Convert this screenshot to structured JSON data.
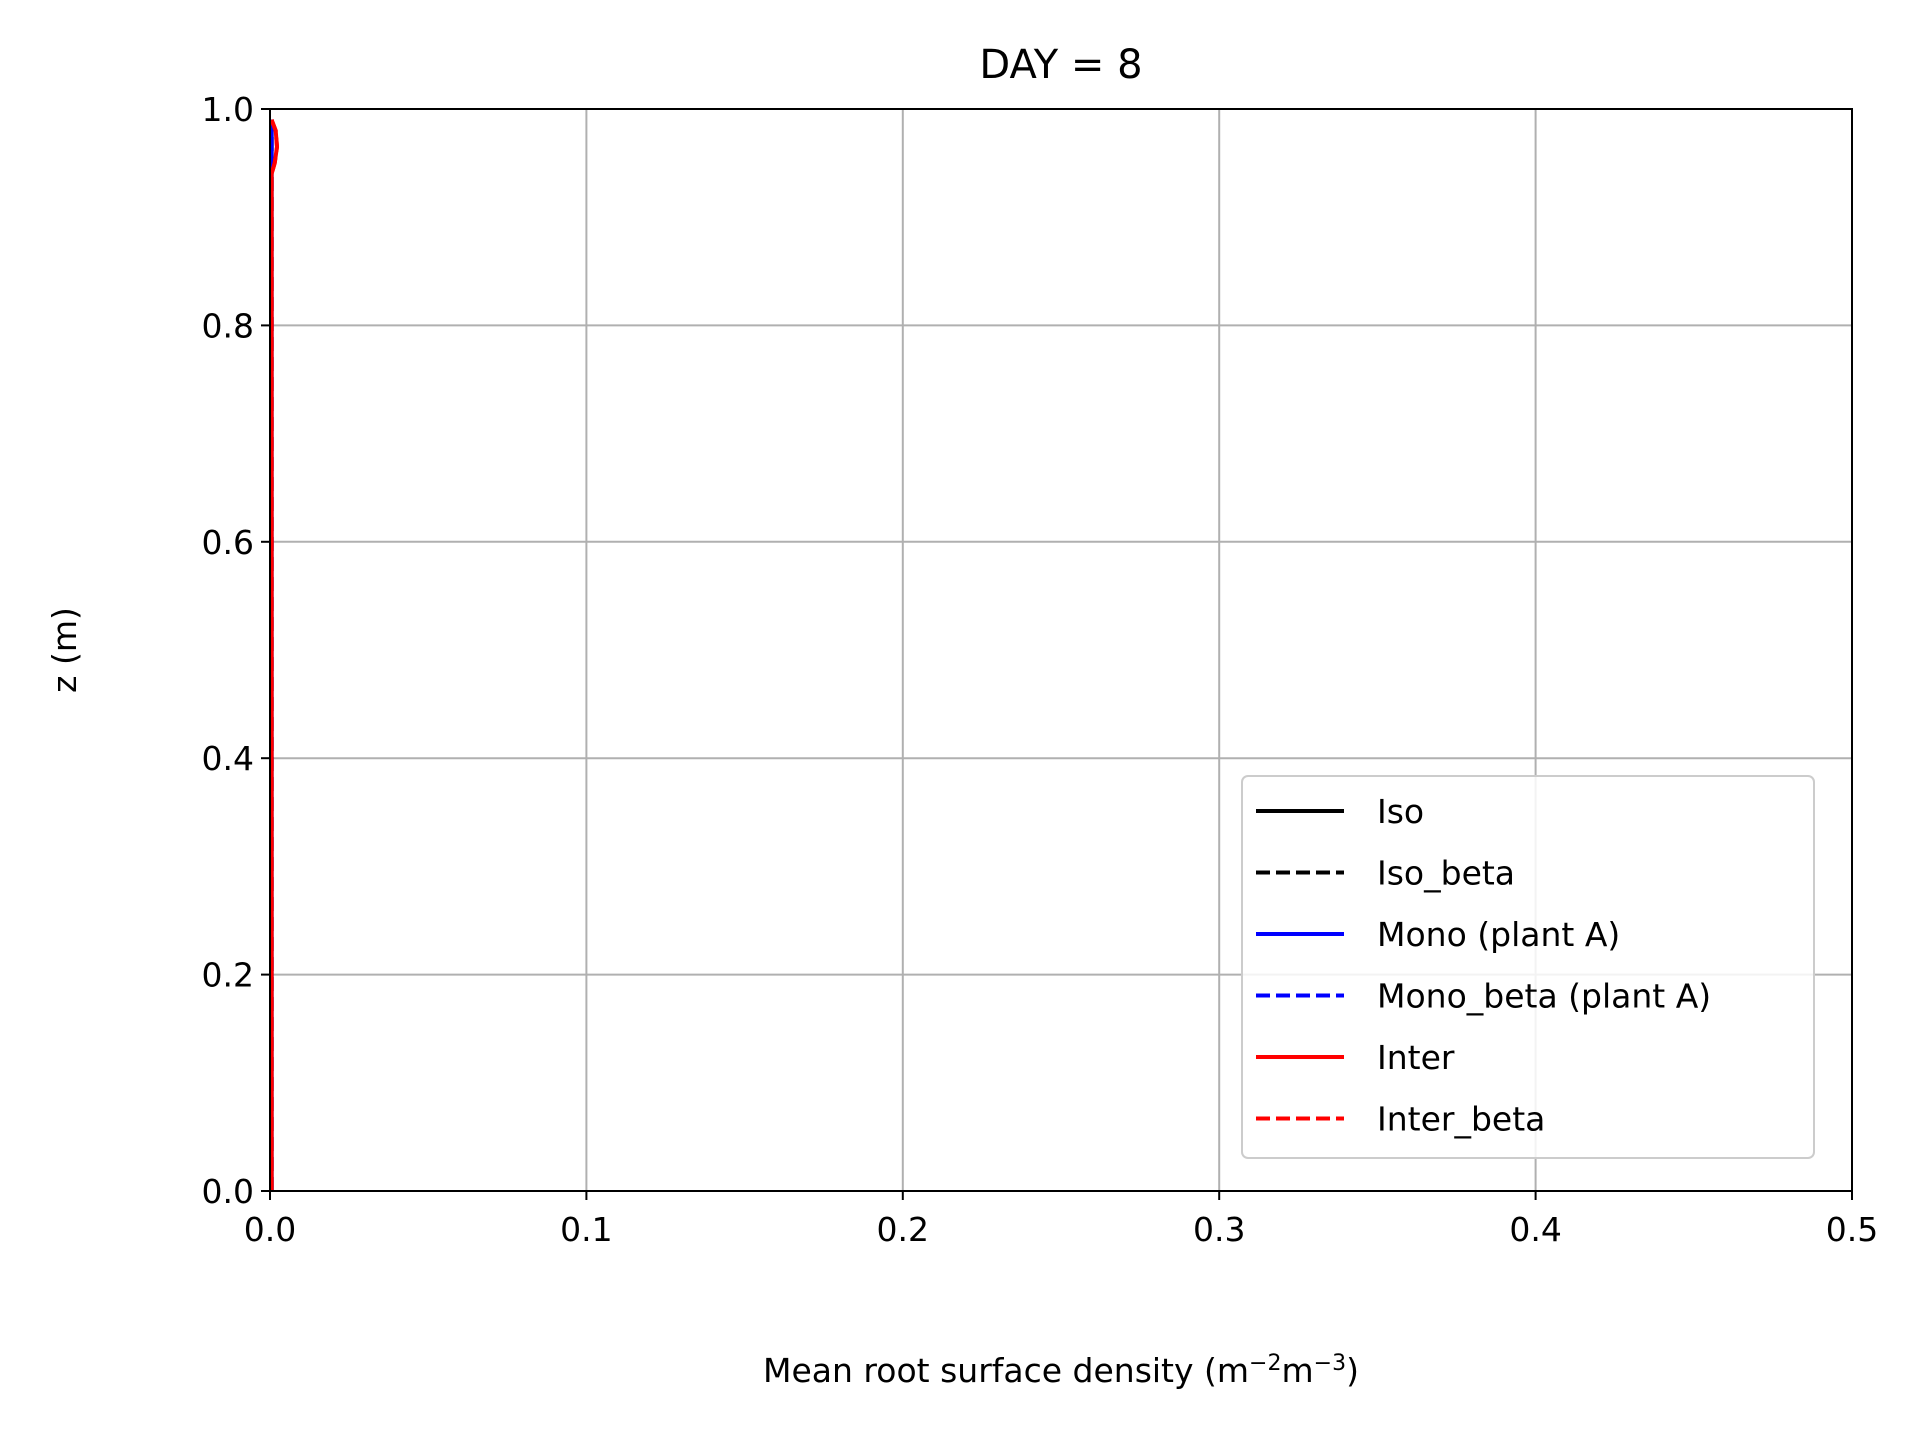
{
  "chart_data": {
    "type": "line",
    "title": "DAY = 8",
    "xlabel": {
      "main": "Mean root surface density (m",
      "sup1": "−2",
      "mid": "m",
      "sup2": "−3",
      "end": ")"
    },
    "ylabel": "z (m)",
    "xlim": [
      0,
      0.5
    ],
    "ylim": [
      0,
      1
    ],
    "xticks": [
      "0.0",
      "0.1",
      "0.2",
      "0.3",
      "0.4",
      "0.5"
    ],
    "yticks": [
      "0.0",
      "0.2",
      "0.4",
      "0.6",
      "0.8",
      "1.0"
    ],
    "grid": true,
    "legend_position": "lower right",
    "series": [
      {
        "name": "Iso",
        "color": "#000000",
        "dash": "solid",
        "points": [
          [
            0.0005,
            0.0
          ],
          [
            0.0005,
            0.5
          ],
          [
            0.0005,
            0.99
          ]
        ]
      },
      {
        "name": "Iso_beta",
        "color": "#000000",
        "dash": "dashed",
        "points": [
          [
            0.0005,
            0.0
          ],
          [
            0.0005,
            0.5
          ],
          [
            0.0005,
            0.99
          ]
        ]
      },
      {
        "name": "Mono (plant A)",
        "color": "#0000ff",
        "dash": "solid",
        "points": [
          [
            0.0005,
            0.0
          ],
          [
            0.0005,
            0.5
          ],
          [
            0.0005,
            0.99
          ]
        ]
      },
      {
        "name": "Mono_beta (plant A)",
        "color": "#0000ff",
        "dash": "dashed",
        "points": [
          [
            0.0005,
            0.0
          ],
          [
            0.0005,
            0.5
          ],
          [
            0.0005,
            0.99
          ]
        ]
      },
      {
        "name": "Inter",
        "color": "#ff0000",
        "dash": "solid",
        "points": [
          [
            0.0005,
            0.0
          ],
          [
            0.0005,
            0.94
          ],
          [
            0.0015,
            0.95
          ],
          [
            0.0022,
            0.965
          ],
          [
            0.0018,
            0.98
          ],
          [
            0.0005,
            0.99
          ]
        ]
      },
      {
        "name": "Inter_beta",
        "color": "#ff0000",
        "dash": "dashed",
        "points": [
          [
            0.0005,
            0.0
          ],
          [
            0.0005,
            0.94
          ],
          [
            0.0015,
            0.95
          ],
          [
            0.0022,
            0.965
          ],
          [
            0.0018,
            0.98
          ],
          [
            0.0005,
            0.99
          ]
        ]
      }
    ]
  }
}
